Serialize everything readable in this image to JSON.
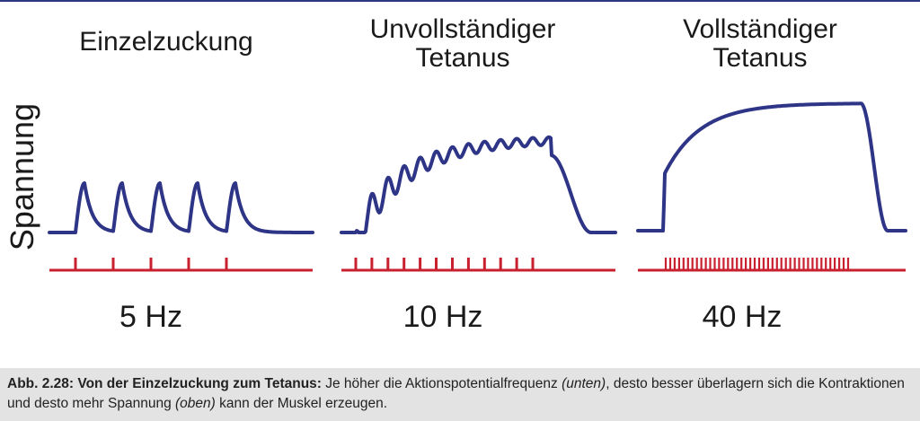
{
  "figure": {
    "y_axis_label": "Spannung",
    "colors": {
      "tension_curve": "#2e3486",
      "stimulus_marks": "#c8202e",
      "caption_background": "#e3e3e3"
    },
    "panels": [
      {
        "title_lines": [
          "Einzelzuckung"
        ],
        "frequency_label": "5 Hz",
        "stimulus_count": 5,
        "curve_type": "single-twitches"
      },
      {
        "title_lines": [
          "Unvollständiger",
          "Tetanus"
        ],
        "frequency_label": "10 Hz",
        "stimulus_count": 12,
        "curve_type": "incomplete-tetanus"
      },
      {
        "title_lines": [
          "Vollständiger",
          "Tetanus"
        ],
        "frequency_label": "40 Hz",
        "stimulus_count": 42,
        "curve_type": "complete-tetanus"
      }
    ]
  },
  "caption": {
    "label": "Abb. 2.28: Von der Einzelzuckung zum Tetanus:",
    "text_1": " Je höher die Aktionspotentialfrequenz ",
    "italic_1": "(unten)",
    "text_2": ", desto besser überlagern sich die Kontraktionen und desto mehr Spannung ",
    "italic_2": "(oben)",
    "text_3": " kann der Muskel erzeugen."
  }
}
